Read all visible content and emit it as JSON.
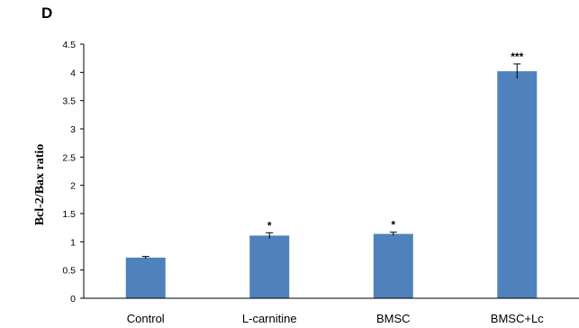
{
  "panel_label": "D",
  "chart_data": {
    "type": "bar",
    "categories": [
      "Control",
      "L-carnitine",
      "BMSC",
      "BMSC+Lc"
    ],
    "values": [
      0.72,
      1.11,
      1.14,
      4.02
    ],
    "errors": [
      0.02,
      0.05,
      0.03,
      0.13
    ],
    "significance": [
      "",
      "*",
      "*",
      "***"
    ],
    "ylabel": "Bcl-2/Bax ratio",
    "xlabel": "",
    "ylim": [
      0,
      4.5
    ],
    "yticks": [
      "0",
      "0.5",
      "1",
      "1.5",
      "2",
      "2.5",
      "3",
      "3.5",
      "4",
      "4.5"
    ],
    "grid": false,
    "bar_color": "#4f81bd"
  }
}
